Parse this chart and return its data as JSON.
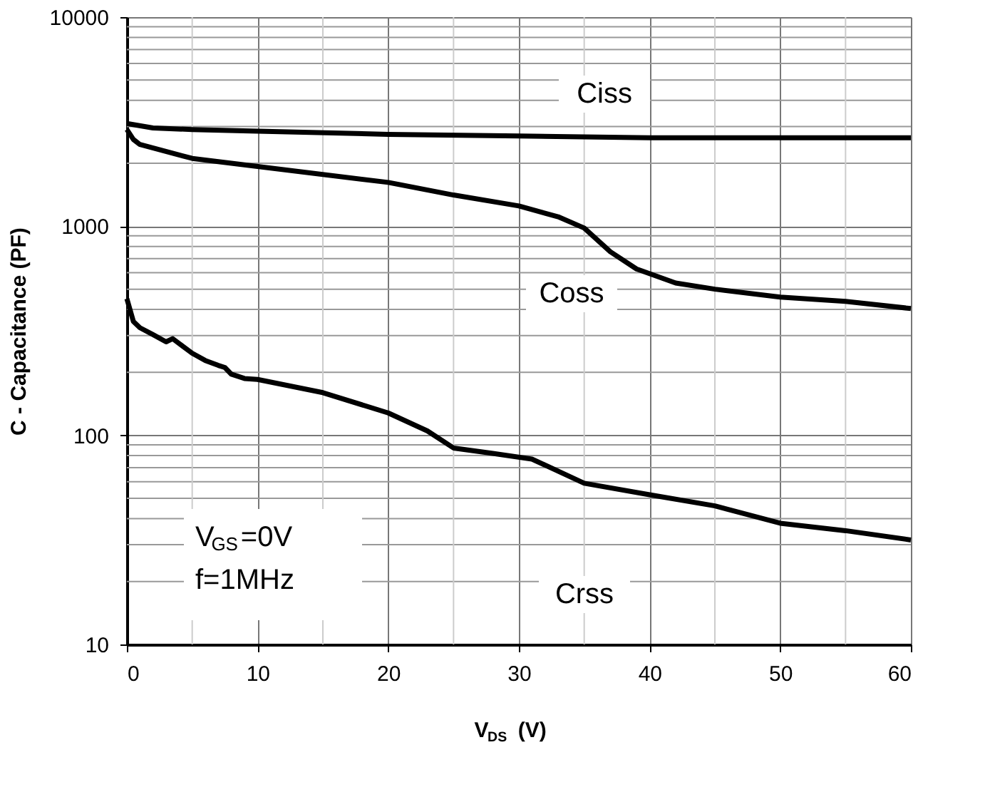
{
  "chart_data": {
    "type": "line",
    "xlabel": "V$_{DS}$ (V)",
    "ylabel": "C - Capacitance (PF)",
    "xlim": [
      0,
      60
    ],
    "xticks": [
      0,
      10,
      20,
      30,
      40,
      50,
      60
    ],
    "ylim": [
      10,
      10000
    ],
    "yticks": [
      10,
      100,
      1000,
      10000
    ],
    "log": "y",
    "grid": true,
    "legend": false,
    "line_style": "solid",
    "marker": "none",
    "series": [
      {
        "color": "#000000",
        "x": [
          0,
          2,
          5,
          10,
          20,
          30,
          40,
          50,
          60
        ],
        "values": [
          3100,
          2950,
          2900,
          2850,
          2750,
          2700,
          2650,
          2650,
          2650
        ]
      },
      {
        "color": "#000000",
        "x": [
          0,
          0.5,
          1,
          5,
          10,
          20,
          25,
          30,
          33,
          35,
          37,
          39,
          42,
          45,
          50,
          55,
          60
        ],
        "values": [
          2900,
          2600,
          2460,
          2110,
          1930,
          1620,
          1410,
          1250,
          1110,
          980,
          755,
          625,
          535,
          500,
          458,
          437,
          404
        ]
      },
      {
        "color": "#000000",
        "x": [
          0,
          0.5,
          1,
          2,
          3,
          3.5,
          5,
          6,
          7,
          7.5,
          8,
          9,
          10,
          15,
          20,
          23,
          25,
          28,
          31,
          35,
          40,
          45,
          50,
          55,
          60
        ],
        "values": [
          450,
          350,
          327,
          303,
          280,
          290,
          247,
          228,
          216,
          211,
          196,
          187,
          185,
          160,
          128,
          105,
          87,
          82,
          77,
          59,
          52,
          46,
          38,
          35,
          31.6
        ]
      }
    ],
    "annotations": [
      "Ciss",
      "Coss",
      "Crss",
      "V$_{GS}$=0V",
      "f=1MHz"
    ]
  }
}
